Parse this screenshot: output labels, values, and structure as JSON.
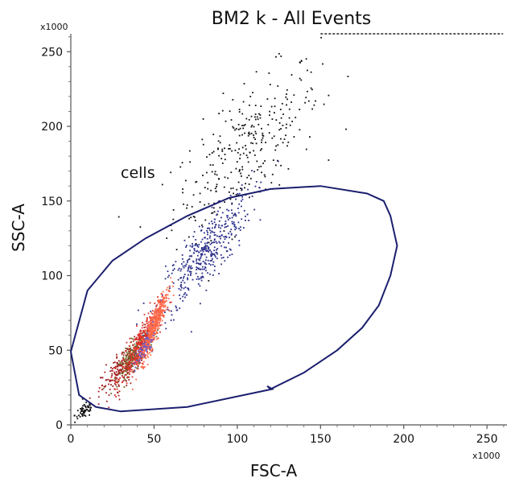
{
  "chart_data": {
    "type": "scatter",
    "title": "BM2 k - All Events",
    "xlabel": "FSC-A",
    "ylabel": "SSC-A",
    "x_multiplier": "x1000",
    "y_multiplier": "x1000",
    "xlim": [
      0,
      262
    ],
    "ylim": [
      0,
      262
    ],
    "x_ticks": [
      0,
      50,
      100,
      150,
      200,
      250
    ],
    "y_ticks": [
      0,
      50,
      100,
      150,
      200,
      250
    ],
    "grid": false,
    "colors": {
      "gate": "#1b1f6e",
      "black_events": "#111111",
      "blue_events": "#2a2f8a",
      "red_events": "#e0302a",
      "salmon_events": "#ff6a4a",
      "darkred_events": "#a11d1d",
      "olive_events": "#6b6b2a",
      "violet_events": "#6a5acd"
    },
    "gates": [
      {
        "name": "cells",
        "polygon": [
          [
            0,
            49
          ],
          [
            10,
            90
          ],
          [
            25,
            110
          ],
          [
            45,
            125
          ],
          [
            70,
            140
          ],
          [
            95,
            152
          ],
          [
            120,
            158
          ],
          [
            150,
            160
          ],
          [
            178,
            155
          ],
          [
            188,
            150
          ],
          [
            192,
            140
          ],
          [
            196,
            120
          ],
          [
            192,
            100
          ],
          [
            185,
            80
          ],
          [
            175,
            65
          ],
          [
            160,
            50
          ],
          [
            140,
            35
          ],
          [
            120,
            24
          ],
          [
            118,
            26
          ],
          [
            121,
            24
          ],
          [
            70,
            12
          ],
          [
            30,
            9
          ],
          [
            15,
            12
          ],
          [
            5,
            20
          ],
          [
            0,
            49
          ]
        ]
      }
    ],
    "saturation_band": {
      "y": 262,
      "x_from": 150,
      "x_to": 250
    },
    "populations": [
      {
        "color": "black_events",
        "n": 320,
        "cx": 105,
        "cy": 185,
        "sx": 22,
        "sy": 28,
        "rho": 0.7
      },
      {
        "color": "black_events",
        "n": 60,
        "cx": 8,
        "cy": 10,
        "sx": 3,
        "sy": 3,
        "rho": 0.5
      },
      {
        "color": "blue_events",
        "n": 420,
        "cx": 80,
        "cy": 115,
        "sx": 14,
        "sy": 20,
        "rho": 0.85
      },
      {
        "color": "darkred_events",
        "n": 260,
        "cx": 32,
        "cy": 40,
        "sx": 7,
        "sy": 10,
        "rho": 0.8
      },
      {
        "color": "olive_events",
        "n": 200,
        "cx": 38,
        "cy": 48,
        "sx": 5,
        "sy": 8,
        "rho": 0.8
      },
      {
        "color": "red_events",
        "n": 320,
        "cx": 42,
        "cy": 55,
        "sx": 6,
        "sy": 12,
        "rho": 0.85
      },
      {
        "color": "salmon_events",
        "n": 420,
        "cx": 50,
        "cy": 68,
        "sx": 4,
        "sy": 12,
        "rho": 0.9
      },
      {
        "color": "violet_events",
        "n": 60,
        "cx": 44,
        "cy": 52,
        "sx": 3,
        "sy": 6,
        "rho": 0.8
      }
    ]
  }
}
